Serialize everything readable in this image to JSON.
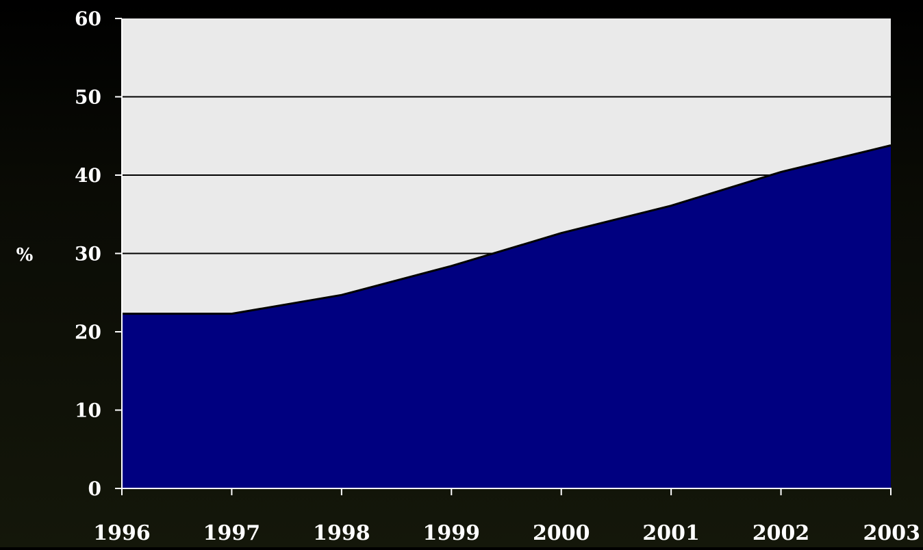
{
  "chart_data": {
    "type": "area",
    "title": "",
    "xlabel": "",
    "ylabel": "%",
    "x": [
      "1996",
      "1997",
      "1998",
      "1999",
      "2000",
      "2001",
      "2002",
      "2003"
    ],
    "series": [
      {
        "values": [
          22.3,
          22.3,
          24.7,
          28.4,
          32.6,
          36.1,
          40.4,
          43.8
        ]
      }
    ],
    "ylim": [
      0,
      60
    ],
    "yticks": [
      0,
      10,
      20,
      30,
      40,
      50,
      60
    ],
    "grid": true,
    "legend": "none",
    "colors": {
      "fill": "#000080",
      "line": "#000000",
      "plot_background": "#eaeaea",
      "gridline": "#000000",
      "text": "#ffffff",
      "page_background": "#0b0c06"
    }
  }
}
